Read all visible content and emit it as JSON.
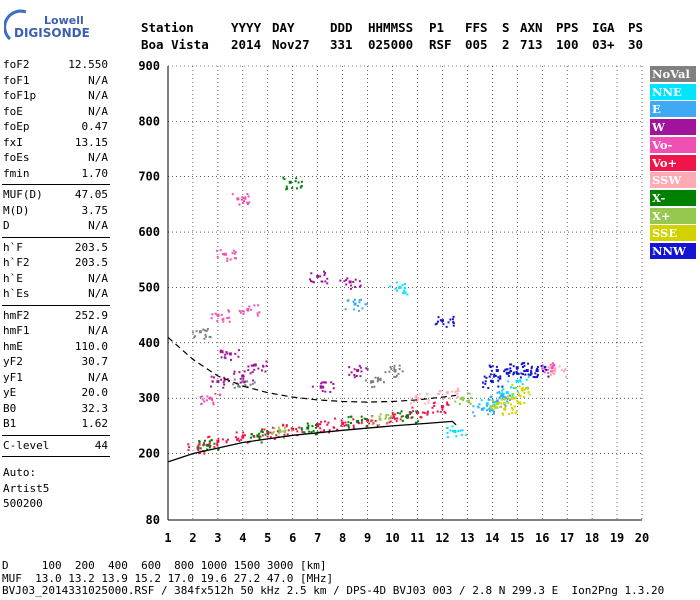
{
  "logo": {
    "line1": "Lowell",
    "line2": "DIGISONDE"
  },
  "header": {
    "row1": [
      "Station",
      "YYYY",
      "DAY",
      "DDD",
      "HHMMSS",
      "P1",
      "FFS",
      "S",
      "AXN",
      "PPS",
      "IGA",
      "PS"
    ],
    "row2": [
      "Boa Vista",
      "2014",
      "Nov27",
      "331",
      "025000",
      "RSF",
      "005",
      "2",
      "713",
      "100",
      "03+",
      "30"
    ]
  },
  "params": {
    "group1": [
      {
        "k": "foF2",
        "v": "12.550"
      },
      {
        "k": "foF1",
        "v": "N/A"
      },
      {
        "k": "foF1p",
        "v": "N/A"
      },
      {
        "k": "foE",
        "v": "N/A"
      },
      {
        "k": "foEp",
        "v": "0.47"
      },
      {
        "k": "fxI",
        "v": "13.15"
      },
      {
        "k": "foEs",
        "v": "N/A"
      },
      {
        "k": "fmin",
        "v": "1.70"
      }
    ],
    "group2": [
      {
        "k": "MUF(D)",
        "v": "47.05"
      },
      {
        "k": "M(D)",
        "v": "3.75"
      },
      {
        "k": "D",
        "v": "N/A"
      }
    ],
    "group3": [
      {
        "k": "h`F",
        "v": "203.5"
      },
      {
        "k": "h`F2",
        "v": "203.5"
      },
      {
        "k": "h`E",
        "v": "N/A"
      },
      {
        "k": "h`Es",
        "v": "N/A"
      }
    ],
    "group4": [
      {
        "k": "hmF2",
        "v": "252.9"
      },
      {
        "k": "hmF1",
        "v": "N/A"
      },
      {
        "k": "hmE",
        "v": "110.0"
      },
      {
        "k": "yF2",
        "v": "30.7"
      },
      {
        "k": "yF1",
        "v": "N/A"
      },
      {
        "k": "yE",
        "v": "20.0"
      },
      {
        "k": "B0",
        "v": "32.3"
      },
      {
        "k": "B1",
        "v": "1.62"
      }
    ],
    "group5": [
      {
        "k": "C-level",
        "v": "44"
      }
    ],
    "auto": [
      "Auto:",
      "Artist5",
      "500200"
    ]
  },
  "legend": [
    {
      "label": "NoVal",
      "bg": "#808080",
      "fg": "#ffffff"
    },
    {
      "label": "NNE",
      "bg": "#00e5ff",
      "fg": "#ffffff"
    },
    {
      "label": "E",
      "bg": "#3fa9f5",
      "fg": "#ffffff"
    },
    {
      "label": "W",
      "bg": "#a0149c",
      "fg": "#ffffff"
    },
    {
      "label": "Vo-",
      "bg": "#f050b4",
      "fg": "#ffffff"
    },
    {
      "label": "Vo+",
      "bg": "#f0144b",
      "fg": "#ffffff"
    },
    {
      "label": "SSW",
      "bg": "#ffaab4",
      "fg": "#ffffff"
    },
    {
      "label": "X-",
      "bg": "#008000",
      "fg": "#ffffff"
    },
    {
      "label": "X+",
      "bg": "#96c850",
      "fg": "#ffffff"
    },
    {
      "label": "SSE",
      "bg": "#d2d200",
      "fg": "#ffffff"
    },
    {
      "label": "NNW",
      "bg": "#1414d2",
      "fg": "#ffffff"
    }
  ],
  "footer": {
    "line1": "D     100  200  400  600  800 1000 1500 3000 [km]",
    "line2": "MUF  13.0 13.2 13.9 15.2 17.0 19.6 27.2 47.0 [MHz]",
    "line3": "BVJ03_2014331025000.RSF / 384fx512h 50 kHz 2.5 km / DPS-4D BVJ03 003 / 2.8 N 299.3 E  Ion2Png 1.3.20"
  },
  "chart_data": {
    "type": "scatter",
    "title": "",
    "xlabel": "",
    "ylabel": "",
    "xlim": [
      1,
      20
    ],
    "ylim": [
      80,
      900
    ],
    "x_ticks": [
      1,
      2,
      3,
      4,
      5,
      6,
      7,
      8,
      9,
      10,
      11,
      12,
      13,
      14,
      15,
      16,
      17,
      18,
      19,
      20
    ],
    "y_ticks": [
      80,
      200,
      300,
      400,
      500,
      600,
      700,
      800,
      900
    ],
    "grid": true,
    "legend_position": "right",
    "series": [
      {
        "name": "NoVal",
        "color": "#808080",
        "points": [
          [
            2.3,
            420
          ],
          [
            9.2,
            330
          ],
          [
            10.1,
            350
          ],
          [
            4.0,
            330
          ]
        ]
      },
      {
        "name": "NNE",
        "color": "#00e5ff",
        "points": [
          [
            10.3,
            500
          ],
          [
            12.5,
            240
          ],
          [
            14.6,
            310
          ],
          [
            15.0,
            330
          ],
          [
            13.8,
            290
          ]
        ]
      },
      {
        "name": "E",
        "color": "#3fa9f5",
        "points": [
          [
            14.2,
            295
          ],
          [
            14.4,
            305
          ],
          [
            13.6,
            280
          ],
          [
            8.5,
            470
          ]
        ]
      },
      {
        "name": "W",
        "color": "#a0149c",
        "points": [
          [
            3.5,
            380
          ],
          [
            4.0,
            340
          ],
          [
            4.5,
            360
          ],
          [
            3.0,
            330
          ],
          [
            7.2,
            320
          ],
          [
            8.6,
            350
          ],
          [
            7.0,
            520
          ],
          [
            8.3,
            510
          ]
        ]
      },
      {
        "name": "Vo-",
        "color": "#f050b4",
        "points": [
          [
            3.0,
            450
          ],
          [
            4.2,
            460
          ],
          [
            3.3,
            560
          ],
          [
            3.8,
            660
          ],
          [
            16.4,
            355
          ],
          [
            2.7,
            300
          ]
        ]
      },
      {
        "name": "Vo+",
        "color": "#f0144b",
        "points": [
          [
            2.2,
            210
          ],
          [
            3.0,
            222
          ],
          [
            4.0,
            230
          ],
          [
            5.0,
            238
          ],
          [
            6.0,
            244
          ],
          [
            7.0,
            250
          ],
          [
            8.0,
            255
          ],
          [
            9.0,
            260
          ],
          [
            10.0,
            266
          ],
          [
            11.0,
            274
          ],
          [
            12.0,
            285
          ]
        ]
      },
      {
        "name": "SSW",
        "color": "#ffaab4",
        "points": [
          [
            16.5,
            350
          ],
          [
            11.0,
            300
          ],
          [
            12.2,
            310
          ]
        ]
      },
      {
        "name": "X-",
        "color": "#008000",
        "points": [
          [
            2.6,
            215
          ],
          [
            4.6,
            232
          ],
          [
            6.6,
            246
          ],
          [
            8.6,
            258
          ],
          [
            10.6,
            268
          ],
          [
            5.9,
            690
          ]
        ]
      },
      {
        "name": "X+",
        "color": "#96c850",
        "points": [
          [
            5.5,
            240
          ],
          [
            9.5,
            262
          ],
          [
            12.8,
            300
          ]
        ]
      },
      {
        "name": "SSE",
        "color": "#d2d200",
        "points": [
          [
            14.5,
            280
          ],
          [
            14.8,
            300
          ],
          [
            15.2,
            315
          ],
          [
            14.2,
            290
          ]
        ]
      },
      {
        "name": "NNW",
        "color": "#1414d2",
        "points": [
          [
            14.2,
            350
          ],
          [
            14.6,
            345
          ],
          [
            15.0,
            355
          ],
          [
            15.4,
            350
          ],
          [
            15.8,
            350
          ],
          [
            14.0,
            330
          ],
          [
            12.0,
            440
          ]
        ]
      }
    ],
    "profile_curve": [
      [
        1.0,
        185
      ],
      [
        2.0,
        200
      ],
      [
        4.0,
        220
      ],
      [
        6.0,
        233
      ],
      [
        8.0,
        242
      ],
      [
        10.0,
        250
      ],
      [
        11.5,
        255
      ],
      [
        12.4,
        258
      ],
      [
        12.55,
        252
      ]
    ],
    "dashed_curve": [
      [
        1.0,
        410
      ],
      [
        2.0,
        370
      ],
      [
        3.0,
        340
      ],
      [
        4.0,
        322
      ],
      [
        5.0,
        310
      ],
      [
        6.0,
        302
      ],
      [
        7.0,
        297
      ],
      [
        8.0,
        294
      ],
      [
        9.0,
        293
      ],
      [
        10.0,
        294
      ],
      [
        11.0,
        297
      ],
      [
        12.0,
        302
      ],
      [
        12.55,
        305
      ]
    ]
  }
}
